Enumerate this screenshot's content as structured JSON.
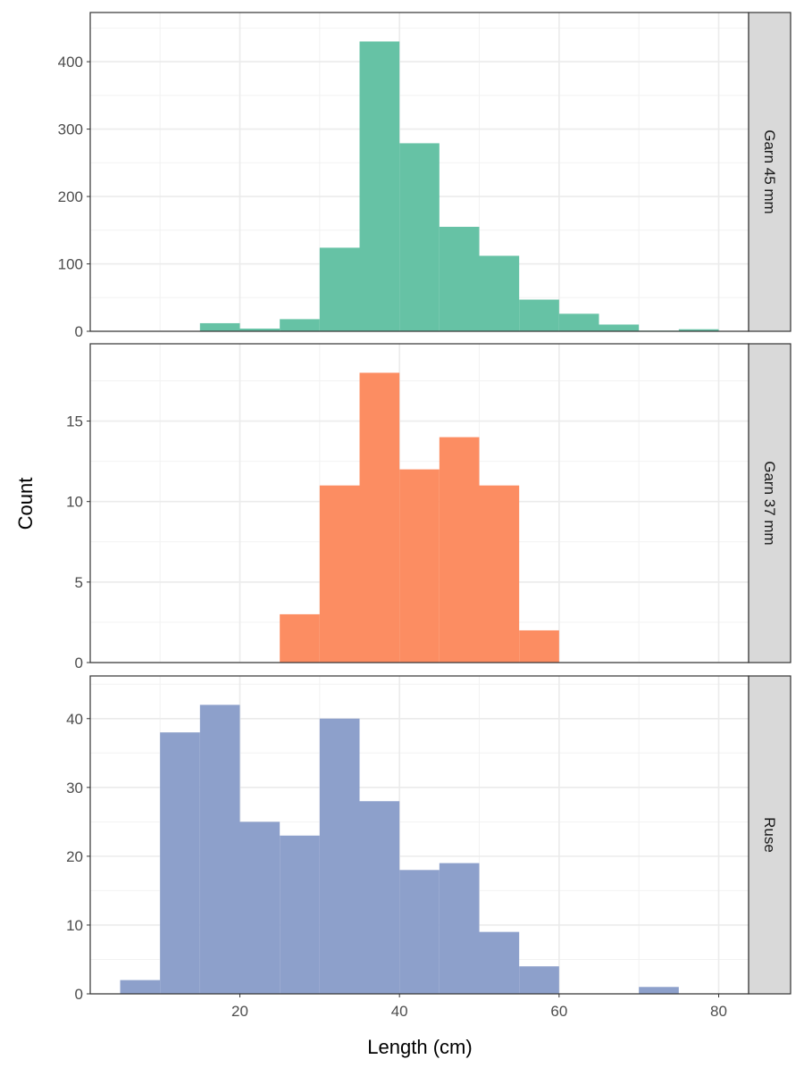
{
  "chart_data": {
    "type": "bar",
    "layout": "faceted histogram, facets stacked vertically, strip labels on right",
    "xlabel": "Length (cm)",
    "ylabel": "Count",
    "xlim": [
      1.25,
      83.75
    ],
    "x_ticks": [
      20,
      40,
      60,
      80
    ],
    "x_tick_labels": [
      "20",
      "40",
      "60",
      "80"
    ],
    "bin_width": 5,
    "grid": true,
    "facets": [
      {
        "label": "Garn 45 mm",
        "color": "#66c2a5",
        "ylim": [
          0,
          473
        ],
        "y_ticks": [
          0,
          100,
          200,
          300,
          400
        ],
        "y_tick_labels": [
          "0",
          "100",
          "200",
          "300",
          "400"
        ],
        "bins": [
          15,
          20,
          25,
          30,
          35,
          40,
          45,
          50,
          55,
          60,
          65,
          70,
          75
        ],
        "values": [
          12,
          4,
          18,
          124,
          430,
          279,
          155,
          112,
          47,
          26,
          10,
          1,
          3
        ]
      },
      {
        "label": "Garn 37 mm",
        "color": "#fc8d62",
        "ylim": [
          0,
          19.8
        ],
        "y_ticks": [
          0,
          5,
          10,
          15
        ],
        "y_tick_labels": [
          "0",
          "5",
          "10",
          "15"
        ],
        "bins": [
          25,
          30,
          35,
          40,
          45,
          50,
          55
        ],
        "values": [
          3,
          11,
          18,
          12,
          14,
          11,
          2
        ]
      },
      {
        "label": "Ruse",
        "color": "#8da0cb",
        "ylim": [
          0,
          46.2
        ],
        "y_ticks": [
          0,
          10,
          20,
          30,
          40
        ],
        "y_tick_labels": [
          "0",
          "10",
          "20",
          "30",
          "40"
        ],
        "bins": [
          5,
          10,
          15,
          20,
          25,
          30,
          35,
          40,
          45,
          50,
          55,
          60,
          65,
          70
        ],
        "values": [
          2,
          38,
          42,
          25,
          23,
          40,
          28,
          18,
          19,
          9,
          4,
          0,
          0,
          1
        ]
      }
    ]
  }
}
